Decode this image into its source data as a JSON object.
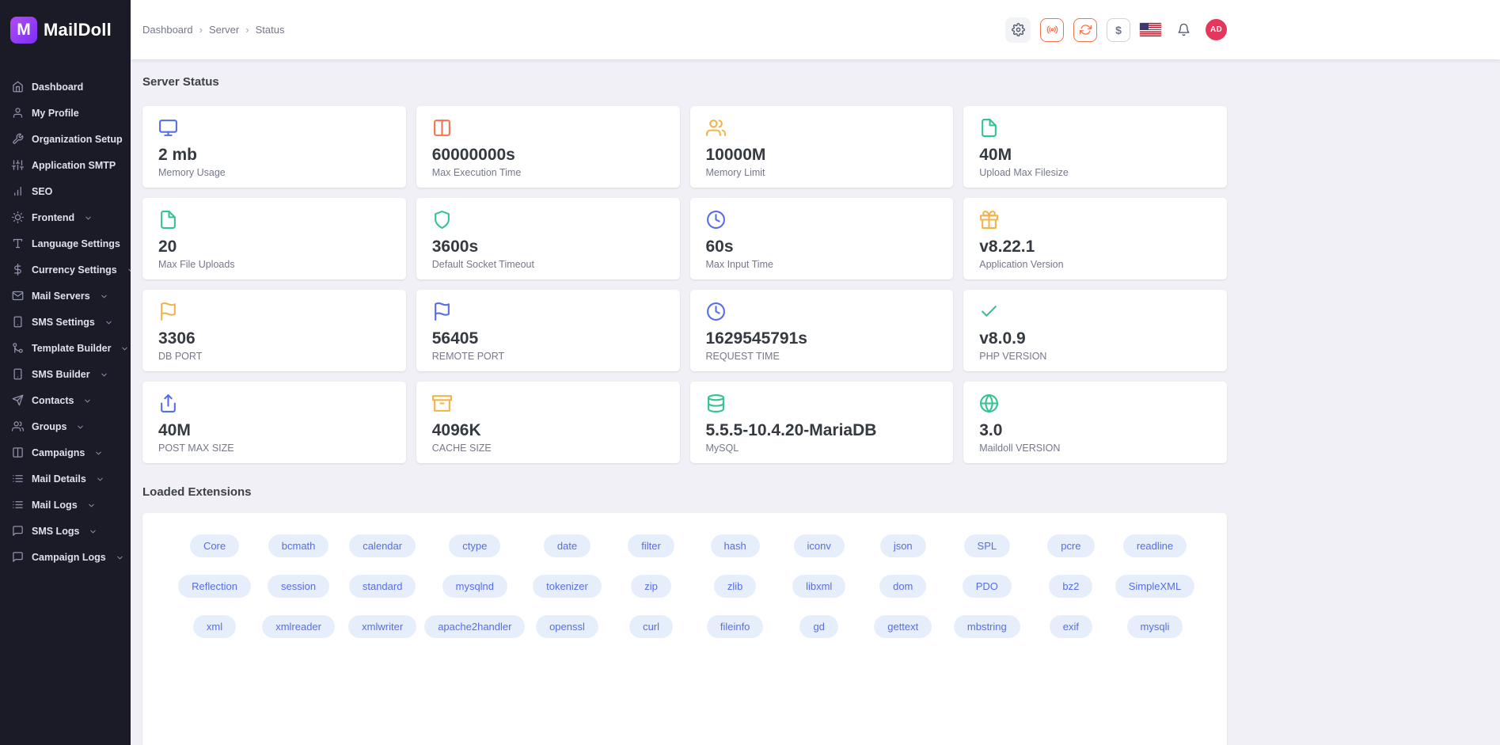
{
  "app": {
    "name": "MailDoll",
    "logo_letter": "M",
    "brand_gradient": [
      "#b14bf4",
      "#7b2ff7"
    ]
  },
  "sidebar": {
    "items": [
      {
        "label": "Dashboard",
        "icon": "home",
        "expandable": false
      },
      {
        "label": "My Profile",
        "icon": "user",
        "expandable": false
      },
      {
        "label": "Organization Setup",
        "icon": "tool",
        "expandable": false
      },
      {
        "label": "Application SMTP",
        "icon": "sliders",
        "expandable": false
      },
      {
        "label": "SEO",
        "icon": "bar-chart",
        "expandable": false
      },
      {
        "label": "Frontend",
        "icon": "sun",
        "expandable": true
      },
      {
        "label": "Language Settings",
        "icon": "type",
        "expandable": true
      },
      {
        "label": "Currency Settings",
        "icon": "dollar",
        "expandable": true
      },
      {
        "label": "Mail Servers",
        "icon": "mail",
        "expandable": true
      },
      {
        "label": "SMS Settings",
        "icon": "smartphone",
        "expandable": true
      },
      {
        "label": "Template Builder",
        "icon": "git-merge",
        "expandable": true
      },
      {
        "label": "SMS Builder",
        "icon": "smartphone",
        "expandable": true
      },
      {
        "label": "Contacts",
        "icon": "send",
        "expandable": true
      },
      {
        "label": "Groups",
        "icon": "users",
        "expandable": true
      },
      {
        "label": "Campaigns",
        "icon": "columns",
        "expandable": true
      },
      {
        "label": "Mail Details",
        "icon": "list",
        "expandable": true
      },
      {
        "label": "Mail Logs",
        "icon": "list",
        "expandable": true
      },
      {
        "label": "SMS Logs",
        "icon": "message-square",
        "expandable": true
      },
      {
        "label": "Campaign Logs",
        "icon": "message-square",
        "expandable": true
      }
    ]
  },
  "header": {
    "breadcrumb": {
      "items": [
        "Dashboard",
        "Server",
        "Status"
      ],
      "separator": "›"
    },
    "currency_symbol": "$",
    "avatar": {
      "initials": "AD",
      "color": "#e7365d"
    }
  },
  "main": {
    "server_status_title": "Server Status",
    "cards": [
      {
        "value": "2 mb",
        "label": "Memory Usage",
        "icon": "monitor",
        "color": "#556ee6"
      },
      {
        "value": "60000000s",
        "label": "Max Execution Time",
        "icon": "columns",
        "color": "#f1734f"
      },
      {
        "value": "10000M",
        "label": "Memory Limit",
        "icon": "users",
        "color": "#f1b44c"
      },
      {
        "value": "40M",
        "label": "Upload Max Filesize",
        "icon": "file",
        "color": "#34c38f"
      },
      {
        "value": "20",
        "label": "Max File Uploads",
        "icon": "file",
        "color": "#34c38f"
      },
      {
        "value": "3600s",
        "label": "Default Socket Timeout",
        "icon": "shield",
        "color": "#34c38f"
      },
      {
        "value": "60s",
        "label": "Max Input Time",
        "icon": "clock",
        "color": "#556ee6"
      },
      {
        "value": "v8.22.1",
        "label": "Application Version",
        "icon": "gift",
        "color": "#f1b44c"
      },
      {
        "value": "3306",
        "label": "DB PORT",
        "icon": "flag",
        "color": "#f1b44c"
      },
      {
        "value": "56405",
        "label": "REMOTE PORT",
        "icon": "flag",
        "color": "#556ee6"
      },
      {
        "value": "1629545791s",
        "label": "REQUEST TIME",
        "icon": "clock",
        "color": "#556ee6"
      },
      {
        "value": "v8.0.9",
        "label": "PHP VERSION",
        "icon": "check",
        "color": "#34c38f"
      },
      {
        "value": "40M",
        "label": "POST MAX SIZE",
        "icon": "share",
        "color": "#556ee6"
      },
      {
        "value": "4096K",
        "label": "CACHE SIZE",
        "icon": "archive",
        "color": "#f1b44c"
      },
      {
        "value": "5.5.5-10.4.20-MariaDB",
        "label": "MySQL",
        "icon": "database",
        "color": "#34c38f"
      },
      {
        "value": "3.0",
        "label": "Maildoll VERSION",
        "icon": "globe",
        "color": "#34c38f"
      }
    ],
    "extensions": {
      "title": "Loaded Extensions",
      "items": [
        "Core",
        "bcmath",
        "calendar",
        "ctype",
        "date",
        "filter",
        "hash",
        "iconv",
        "json",
        "SPL",
        "pcre",
        "readline",
        "Reflection",
        "session",
        "standard",
        "mysqlnd",
        "tokenizer",
        "zip",
        "zlib",
        "libxml",
        "dom",
        "PDO",
        "bz2",
        "SimpleXML",
        "xml",
        "xmlreader",
        "xmlwriter",
        "apache2handler",
        "openssl",
        "curl",
        "fileinfo",
        "gd",
        "gettext",
        "mbstring",
        "exif",
        "mysqli"
      ]
    }
  }
}
